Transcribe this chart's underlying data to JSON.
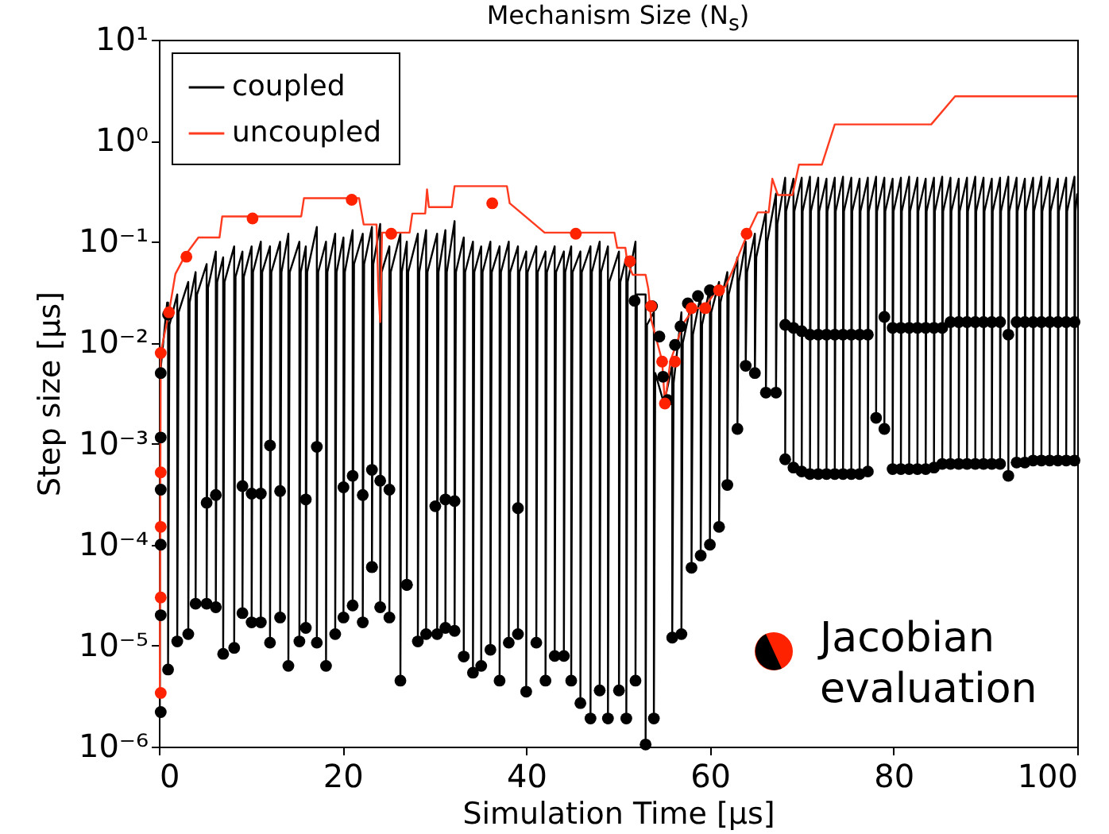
{
  "chart_data": {
    "type": "line",
    "title": "Mechanism Size (N$_{s}$)",
    "xlabel": "Simulation Time [μs]",
    "ylabel": "Step size [μs]",
    "annotations": [
      "Jacobian evaluation"
    ],
    "xlim": [
      0,
      100
    ],
    "xticks": [
      0,
      20,
      40,
      60,
      80,
      100
    ],
    "ylim": [
      1e-06,
      10
    ],
    "log": true,
    "yticks": [
      {
        "value": 1e-06,
        "label": "10⁻⁶"
      },
      {
        "value": 1e-05,
        "label": "10⁻⁵"
      },
      {
        "value": 0.0001,
        "label": "10⁻⁴"
      },
      {
        "value": 0.001,
        "label": "10⁻³"
      },
      {
        "value": 0.01,
        "label": "10⁻²"
      },
      {
        "value": 0.1,
        "label": "10⁻¹"
      },
      {
        "value": 1,
        "label": "10⁰"
      },
      {
        "value": 10,
        "label": "10¹"
      }
    ],
    "grid": false,
    "legend": "top left",
    "series": [
      {
        "name": "coupled",
        "color": "#000000",
        "x": [
          0.1,
          0.15,
          0.9,
          1.0,
          1.0,
          1.15,
          2.0,
          2.0,
          2.15,
          3.2,
          3.2,
          3.35,
          4.0,
          4.0,
          4.15,
          5.2,
          5.2,
          5.35,
          6.2,
          6.2,
          6.35,
          7.0,
          7.0,
          7.15,
          8.2,
          8.2,
          8.35,
          9.1,
          9.1,
          9.25,
          10.1,
          10.1,
          10.25,
          11.1,
          11.1,
          11.25,
          12.1,
          12.1,
          12.25,
          13.2,
          13.2,
          13.35,
          14.1,
          14.1,
          14.25,
          15.3,
          15.3,
          15.45,
          16.0,
          16.0,
          16.15,
          17.2,
          17.2,
          17.35,
          18.2,
          18.2,
          18.35,
          19.2,
          19.2,
          19.35,
          20.1,
          20.1,
          20.25,
          21.1,
          21.1,
          21.25,
          22.2,
          22.2,
          22.35,
          23.2,
          23.2,
          23.35,
          24.1,
          24.1,
          24.25,
          25.1,
          25.1,
          25.25,
          26.3,
          26.3,
          26.45,
          27.0,
          27.0,
          27.15,
          28.2,
          28.2,
          28.35,
          29.1,
          29.1,
          29.25,
          30.3,
          30.3,
          30.45,
          31.2,
          31.2,
          31.35,
          32.2,
          32.2,
          32.35,
          33.2,
          33.2,
          33.35,
          34.2,
          34.2,
          34.35,
          35.1,
          35.1,
          35.25,
          36.1,
          36.1,
          36.25,
          37.1,
          37.1,
          37.25,
          38.1,
          38.1,
          38.25,
          39.1,
          39.1,
          39.25,
          40.0,
          40.0,
          40.15,
          41.1,
          41.1,
          41.25,
          42.1,
          42.1,
          42.25,
          43.1,
          43.1,
          43.25,
          44.1,
          44.1,
          44.25,
          44.9,
          44.9,
          45.05,
          45.9,
          45.9,
          46.05,
          47.0,
          47.0,
          47.15,
          48.0,
          48.0,
          48.15,
          48.9,
          48.9,
          49.05,
          50.1,
          50.1,
          50.25,
          50.9,
          50.9,
          51.05,
          51.9,
          51.9,
          52.05,
          53.0,
          53.0,
          53.15,
          53.9,
          53.9,
          54.05,
          55.0,
          55.9,
          55.9,
          56.05,
          56.9,
          56.9,
          57.05,
          58.0,
          58.0,
          58.15,
          59.0,
          59.0,
          59.15,
          60.0,
          60.0,
          60.15,
          61.0,
          61.0,
          61.15,
          61.9,
          61.9,
          62.05,
          63.0,
          63.0,
          63.15,
          63.9,
          63.9,
          64.05,
          64.9,
          64.9,
          65.05,
          66.1,
          66.1,
          66.25,
          67.2,
          67.2,
          67.35,
          68.2,
          68.2,
          68.3,
          69.1,
          69.1,
          69.2,
          70.0,
          70.0,
          70.1,
          70.9,
          70.9,
          71.0,
          71.8,
          71.8,
          71.9,
          72.7,
          72.7,
          72.8,
          73.6,
          73.6,
          73.7,
          74.5,
          74.5,
          74.6,
          75.4,
          75.4,
          75.5,
          76.3,
          76.3,
          76.4,
          77.2,
          77.2,
          77.3,
          78.1,
          78.1,
          78.2,
          79.0,
          79.0,
          79.1,
          79.9,
          79.9,
          80.0,
          80.8,
          80.8,
          80.9,
          81.7,
          81.7,
          81.8,
          82.6,
          82.6,
          82.7,
          83.5,
          83.5,
          83.6,
          84.4,
          84.4,
          84.5,
          85.3,
          85.3,
          85.4,
          86.2,
          86.2,
          86.3,
          87.1,
          87.1,
          87.2,
          88.0,
          88.0,
          88.1,
          88.9,
          88.9,
          89.0,
          89.8,
          89.8,
          89.9,
          90.7,
          90.7,
          90.8,
          91.6,
          91.6,
          91.7,
          92.5,
          92.5,
          92.6,
          93.4,
          93.4,
          93.5,
          94.3,
          94.3,
          94.4,
          95.2,
          95.2,
          95.3,
          96.1,
          96.1,
          96.2,
          97.0,
          97.0,
          97.1,
          97.9,
          97.9,
          98.0,
          98.8,
          98.8,
          98.9,
          99.7,
          99.7,
          99.8,
          100
        ],
        "values": [
          2.2e-06,
          0.005,
          0.025,
          0.025,
          5.8e-06,
          0.015,
          0.03,
          1.1e-05,
          0.02,
          0.04,
          1.3e-05,
          0.025,
          0.05,
          2.6e-05,
          0.03,
          0.06,
          2.6e-05,
          0.035,
          0.08,
          2.4e-05,
          0.04,
          0.07,
          8.3e-06,
          0.04,
          0.09,
          9.5e-06,
          0.045,
          0.08,
          2.1e-05,
          0.045,
          0.09,
          1.7e-05,
          0.05,
          0.1,
          1.7e-05,
          0.05,
          0.09,
          1.07e-05,
          0.05,
          0.1,
          1.9e-05,
          0.05,
          0.12,
          6.3e-06,
          0.05,
          0.1,
          1.1e-05,
          0.05,
          0.09,
          1.5e-05,
          0.05,
          0.14,
          1.07e-05,
          0.05,
          0.1,
          6.3e-06,
          0.05,
          0.12,
          1.3e-05,
          0.05,
          0.11,
          1.9e-05,
          0.05,
          0.13,
          2.5e-05,
          0.06,
          0.12,
          1.7e-05,
          0.06,
          0.14,
          6e-05,
          0.06,
          0.15,
          2.4e-05,
          0.05,
          0.09,
          1.9e-05,
          0.05,
          0.12,
          4.5e-06,
          0.05,
          0.1,
          4e-05,
          0.05,
          0.12,
          1.1e-05,
          0.05,
          0.13,
          1.3e-05,
          0.05,
          0.12,
          1.3e-05,
          0.05,
          0.13,
          1.5e-05,
          0.05,
          0.16,
          1.4e-05,
          0.05,
          0.11,
          7.8e-06,
          0.05,
          0.1,
          5.4e-06,
          0.05,
          0.09,
          6.3e-06,
          0.05,
          0.1,
          9.1e-06,
          0.05,
          0.09,
          4.5e-06,
          0.05,
          0.1,
          1.07e-05,
          0.05,
          0.09,
          1.3e-05,
          0.05,
          0.08,
          3.5e-06,
          0.05,
          0.09,
          1.07e-05,
          0.05,
          0.08,
          4.5e-06,
          0.05,
          0.09,
          7.9e-06,
          0.05,
          0.08,
          7.9e-06,
          0.05,
          0.09,
          4.5e-06,
          0.05,
          0.08,
          2.7e-06,
          0.05,
          0.09,
          1.9e-06,
          0.05,
          0.1,
          3.6e-06,
          0.05,
          0.09,
          1.9e-06,
          0.04,
          0.08,
          3.6e-06,
          0.04,
          0.07,
          1.9e-06,
          0.04,
          0.1,
          4.5e-06,
          0.03,
          0.03,
          1.05e-06,
          0.015,
          0.02,
          1.9e-06,
          0.005,
          0.0025,
          0.006,
          1.2e-05,
          0.004,
          0.02,
          1.3e-05,
          0.01,
          0.025,
          5.9e-05,
          0.012,
          0.03,
          7.8e-05,
          0.015,
          0.035,
          0.0001,
          0.02,
          0.04,
          0.00015,
          0.025,
          0.05,
          0.00039,
          0.03,
          0.07,
          0.0014,
          0.04,
          0.1,
          0.0059,
          0.05,
          0.12,
          0.005,
          0.07,
          0.2,
          0.0032,
          0.1,
          0.3,
          0.0032,
          0.15,
          0.43,
          0.0007,
          0.2,
          0.42,
          0.00058,
          0.2,
          0.43,
          0.00053,
          0.2,
          0.44,
          0.0005,
          0.2,
          0.43,
          0.0005,
          0.2,
          0.42,
          0.0005,
          0.2,
          0.43,
          0.0005,
          0.2,
          0.44,
          0.0005,
          0.2,
          0.43,
          0.0005,
          0.2,
          0.42,
          0.0005,
          0.2,
          0.43,
          0.00053,
          0.2,
          0.44,
          0.0018,
          0.2,
          0.43,
          0.0014,
          0.2,
          0.42,
          0.00056,
          0.2,
          0.43,
          0.00056,
          0.2,
          0.44,
          0.00056,
          0.2,
          0.43,
          0.00056,
          0.2,
          0.42,
          0.00056,
          0.2,
          0.43,
          0.00058,
          0.2,
          0.44,
          0.00063,
          0.2,
          0.43,
          0.00063,
          0.2,
          0.42,
          0.00063,
          0.2,
          0.43,
          0.00063,
          0.2,
          0.44,
          0.00063,
          0.2,
          0.43,
          0.00063,
          0.2,
          0.42,
          0.00063,
          0.2,
          0.43,
          0.00063,
          0.2,
          0.44,
          0.00048,
          0.2,
          0.43,
          0.00065,
          0.2,
          0.42,
          0.00065,
          0.2,
          0.43,
          0.00068,
          0.2,
          0.44,
          0.00068,
          0.2,
          0.43,
          0.00068,
          0.2,
          0.42,
          0.00068,
          0.2,
          0.43,
          0.00068,
          0.2,
          0.44,
          0.00068,
          0.2,
          0.3
        ]
      },
      {
        "name": "uncoupled",
        "color": "#ff3b1f",
        "x": [
          0.1,
          0.2,
          1.1,
          1.8,
          2.9,
          4.3,
          6.6,
          6.9,
          15.5,
          15.8,
          21.8,
          22.3,
          23.7,
          23.9,
          24.1,
          24.3,
          27.3,
          27.6,
          29.0,
          29.2,
          29.4,
          31.9,
          32.2,
          37.9,
          38.2,
          39.9,
          42.0,
          49.6,
          49.9,
          50.8,
          51.0,
          51.6,
          53.0,
          53.3,
          53.6,
          54.8,
          55.1,
          55.7,
          56.4,
          57.1,
          58.3,
          59.4,
          60.6,
          61.7,
          62.6,
          63.2,
          64.1,
          65.2,
          66.4,
          66.8,
          67.4,
          69.0,
          69.7,
          72.2,
          73.6,
          84.1,
          86.7,
          100
        ],
        "values": [
          3.4e-06,
          0.008,
          0.02,
          0.048,
          0.074,
          0.11,
          0.11,
          0.178,
          0.178,
          0.27,
          0.27,
          0.148,
          0.148,
          0.033,
          0.016,
          0.123,
          0.123,
          0.19,
          0.19,
          0.33,
          0.22,
          0.22,
          0.355,
          0.355,
          0.24,
          0.178,
          0.123,
          0.123,
          0.087,
          0.087,
          0.063,
          0.047,
          0.047,
          0.034,
          0.017,
          0.0066,
          0.0025,
          0.0066,
          0.01,
          0.0155,
          0.022,
          0.022,
          0.032,
          0.036,
          0.055,
          0.076,
          0.12,
          0.195,
          0.195,
          0.42,
          0.29,
          0.29,
          0.58,
          0.58,
          1.45,
          1.45,
          2.75,
          2.75
        ]
      },
      {
        "type": "scatter",
        "color": "#000000",
        "x": [
          0.2,
          0.2,
          0.2,
          0.2,
          0.2,
          0.2,
          1.0,
          1.0,
          2.0,
          3.2,
          4.0,
          5.2,
          6.2,
          7.0,
          8.2,
          9.1,
          10.1,
          11.1,
          12.1,
          13.2,
          14.1,
          15.3,
          16.0,
          17.2,
          18.2,
          19.2,
          20.1,
          21.1,
          22.2,
          23.2,
          24.1,
          25.1,
          26.3,
          27.0,
          28.2,
          29.1,
          30.3,
          31.2,
          32.2,
          33.2,
          34.2,
          35.1,
          36.1,
          37.1,
          38.1,
          39.1,
          40.0,
          41.1,
          42.1,
          43.1,
          44.1,
          44.9,
          45.9,
          47.0,
          48.0,
          48.9,
          50.1,
          50.9,
          51.9,
          53.0,
          53.9,
          55.9,
          56.9,
          58.0,
          59.0,
          60.0,
          61.0,
          61.9,
          63.0,
          63.9,
          64.9,
          66.1,
          67.2,
          5.2,
          6.2,
          9.1,
          10.1,
          11.1,
          12.1,
          13.2,
          16.0,
          17.2,
          20.1,
          21.1,
          22.2,
          23.2,
          23.2,
          24.1,
          25.1,
          27.0,
          30.1,
          31.2,
          32.2,
          39.1,
          51.8,
          53.7,
          54.5,
          54.9,
          55.4,
          56.2,
          56.8,
          57.6,
          58.7,
          60.0,
          68.2,
          69.1,
          70.0,
          70.9,
          71.8,
          72.7,
          73.6,
          74.5,
          75.4,
          76.3,
          77.2,
          78.1,
          79.0,
          79.9,
          80.8,
          81.7,
          82.6,
          83.5,
          84.4,
          85.3,
          86.2,
          87.1,
          88.0,
          88.9,
          89.8,
          90.7,
          91.6,
          92.5,
          93.4,
          94.3,
          95.2,
          96.1,
          97.0,
          97.9,
          98.8,
          99.7,
          68.2,
          69.1,
          70.0,
          70.9,
          71.8,
          72.7,
          73.6,
          74.5,
          75.4,
          76.3,
          77.2,
          79.0,
          79.9,
          80.8,
          81.7,
          82.6,
          83.5,
          84.4,
          85.3,
          86.2,
          87.1,
          88.0,
          88.9,
          89.8,
          90.7,
          91.6,
          92.5,
          93.4,
          94.3,
          95.2,
          96.1,
          97.0,
          97.9,
          98.8,
          99.7
        ],
        "values": [
          2.2e-06,
          2e-05,
          0.0001,
          0.00035,
          0.00115,
          0.005,
          0.019,
          5.8e-06,
          1.1e-05,
          1.3e-05,
          2.6e-05,
          2.6e-05,
          2.4e-05,
          8.3e-06,
          9.5e-06,
          2.1e-05,
          1.7e-05,
          1.7e-05,
          1.07e-05,
          1.9e-05,
          6.3e-06,
          1.1e-05,
          1.5e-05,
          1.07e-05,
          6.3e-06,
          1.3e-05,
          1.9e-05,
          2.5e-05,
          1.7e-05,
          6e-05,
          2.4e-05,
          1.9e-05,
          4.5e-06,
          4e-05,
          1.1e-05,
          1.3e-05,
          1.3e-05,
          1.5e-05,
          1.4e-05,
          7.8e-06,
          5.4e-06,
          6.3e-06,
          9.1e-06,
          4.5e-06,
          1.07e-05,
          1.3e-05,
          3.5e-06,
          1.07e-05,
          4.5e-06,
          7.9e-06,
          7.9e-06,
          4.5e-06,
          2.7e-06,
          1.9e-06,
          3.6e-06,
          1.9e-06,
          3.6e-06,
          1.9e-06,
          4.5e-06,
          1.05e-06,
          1.9e-06,
          1.2e-05,
          1.3e-05,
          5.9e-05,
          7.8e-05,
          0.0001,
          0.00015,
          0.00039,
          0.0014,
          0.0059,
          0.005,
          0.0032,
          0.0032,
          0.00026,
          0.00031,
          0.00038,
          0.00032,
          0.00032,
          0.00096,
          0.00034,
          0.00028,
          0.00093,
          0.00037,
          0.00048,
          0.00031,
          0.00055,
          6e-05,
          0.00043,
          0.00035,
          4e-05,
          0.00024,
          0.00028,
          0.00027,
          0.00023,
          0.026,
          0.023,
          0.0115,
          0.0046,
          0.0027,
          0.0095,
          0.0145,
          0.0245,
          0.029,
          0.033,
          0.0007,
          0.00058,
          0.00053,
          0.0005,
          0.0005,
          0.0005,
          0.0005,
          0.0005,
          0.0005,
          0.0005,
          0.00053,
          0.0018,
          0.0014,
          0.00056,
          0.00056,
          0.00056,
          0.00056,
          0.00056,
          0.00058,
          0.00063,
          0.00063,
          0.00063,
          0.00063,
          0.00063,
          0.00063,
          0.00063,
          0.00063,
          0.00048,
          0.00065,
          0.00065,
          0.00068,
          0.00068,
          0.00068,
          0.00068,
          0.00068,
          0.00068,
          0.015,
          0.014,
          0.013,
          0.012,
          0.012,
          0.012,
          0.012,
          0.012,
          0.012,
          0.012,
          0.012,
          0.018,
          0.014,
          0.014,
          0.014,
          0.014,
          0.014,
          0.014,
          0.014,
          0.016,
          0.016,
          0.016,
          0.016,
          0.016,
          0.016,
          0.016,
          0.012,
          0.016,
          0.016,
          0.016,
          0.016,
          0.016,
          0.016,
          0.016,
          0.016
        ]
      },
      {
        "type": "scatter",
        "color": "#ff2200",
        "x": [
          0.2,
          0.2,
          0.2,
          0.2,
          0.2,
          1.1,
          3.0,
          10.2,
          21.0,
          25.3,
          36.3,
          45.4,
          51.3,
          53.6,
          54.8,
          55.1,
          56.2,
          58.0,
          59.5,
          61.0,
          64.0
        ],
        "values": [
          3.4e-06,
          3e-05,
          0.00015,
          0.00052,
          0.0079,
          0.02,
          0.071,
          0.17,
          0.26,
          0.12,
          0.24,
          0.12,
          0.064,
          0.023,
          0.0065,
          0.0025,
          0.0065,
          0.022,
          0.022,
          0.033,
          0.12
        ]
      }
    ]
  }
}
